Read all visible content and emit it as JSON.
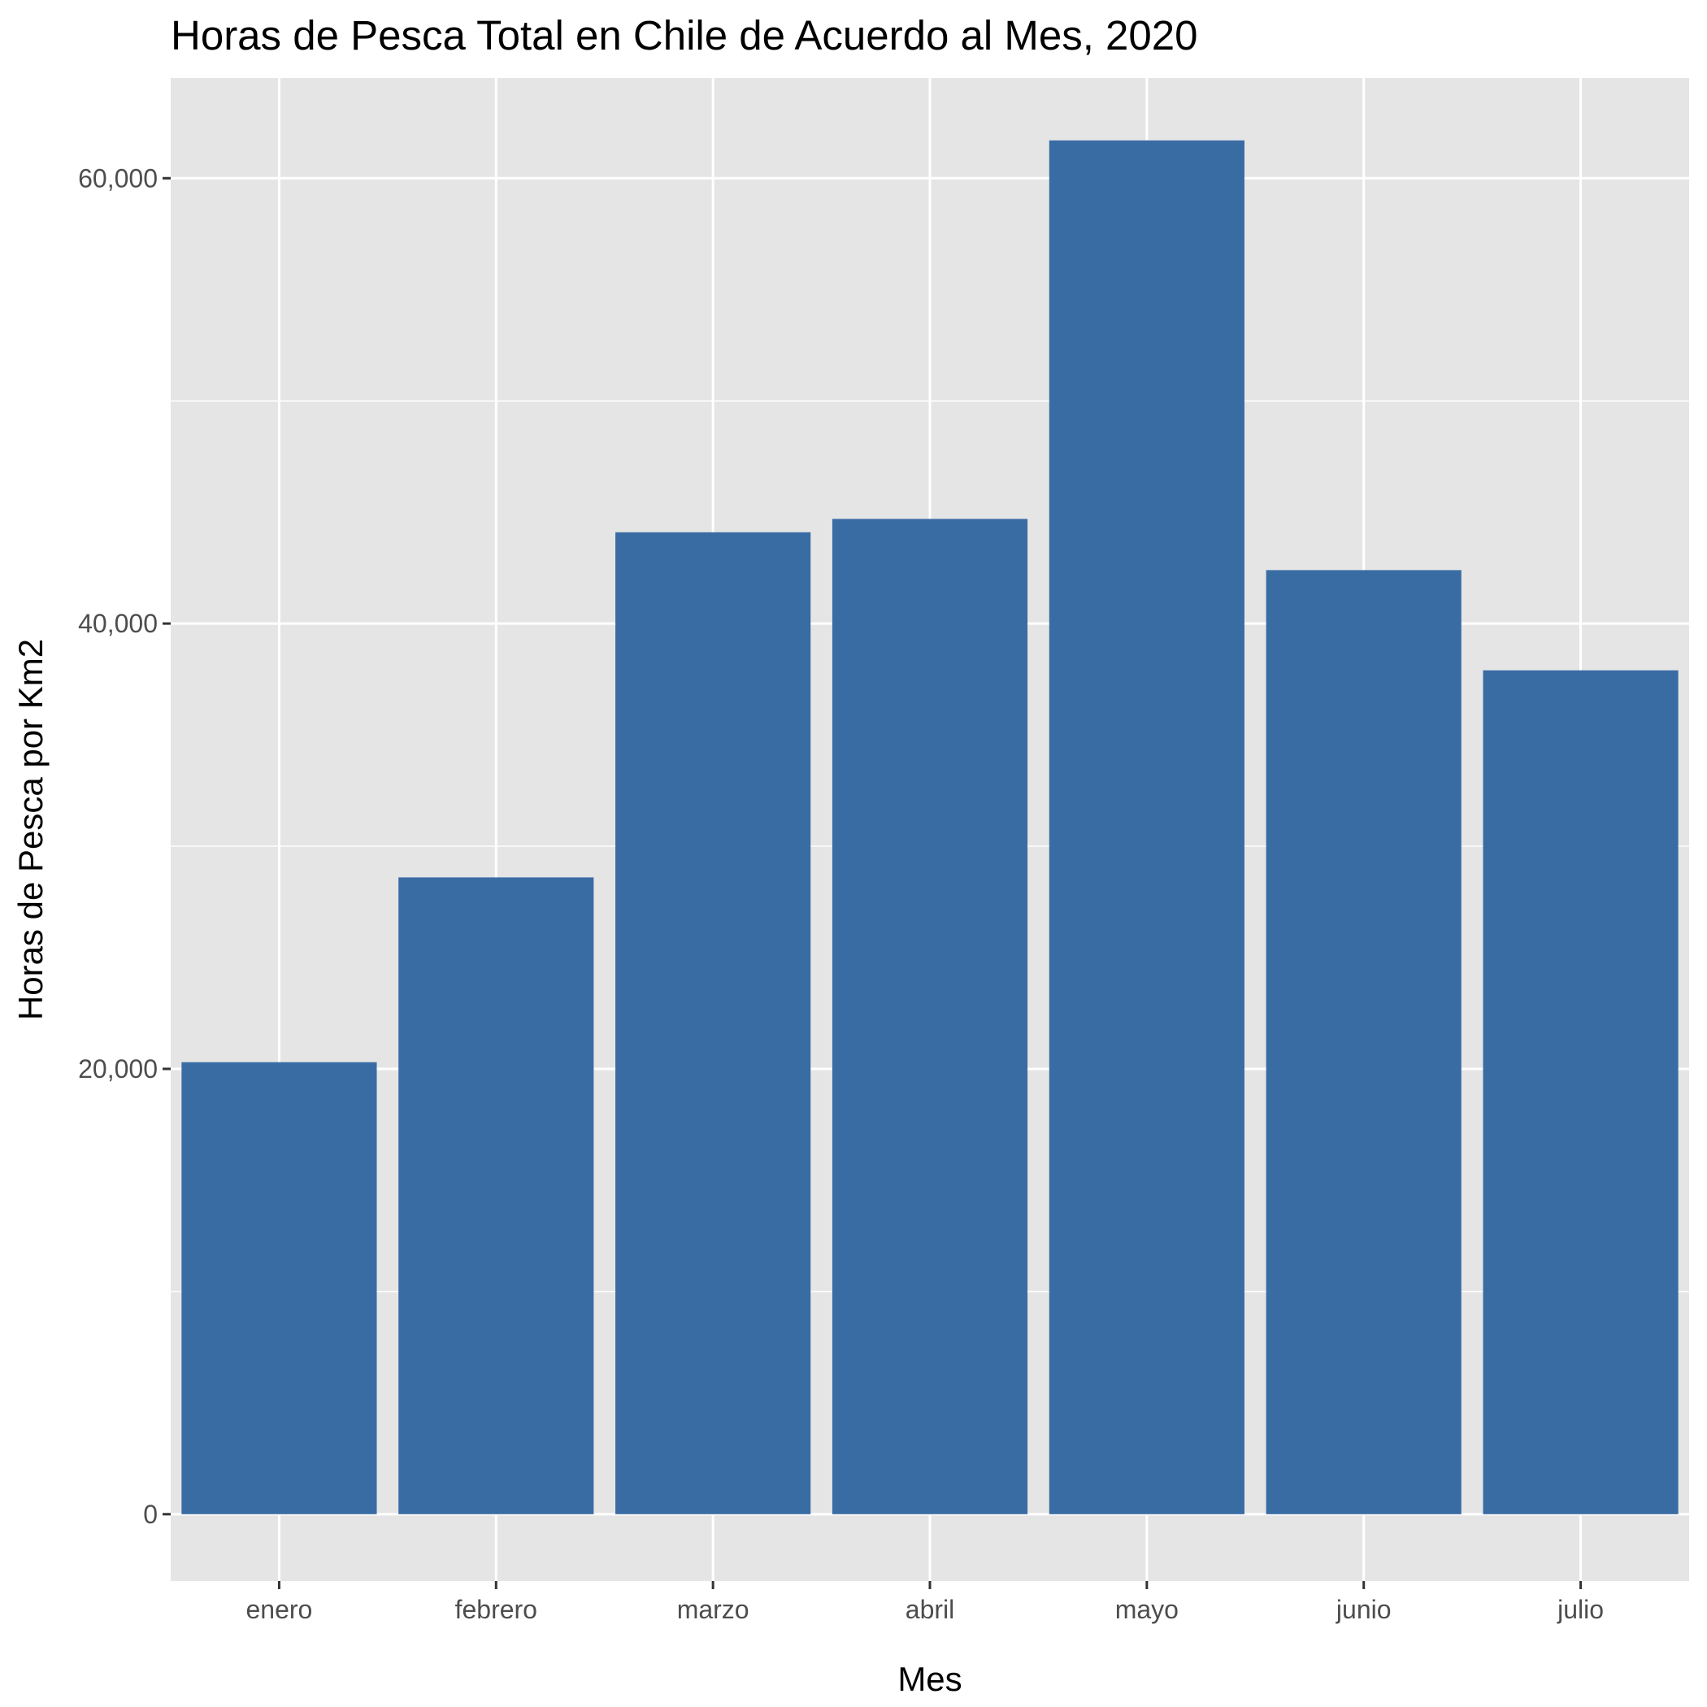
{
  "chart_data": {
    "type": "bar",
    "title": "Horas de Pesca Total en Chile de Acuerdo al Mes, 2020",
    "xlabel": "Mes",
    "ylabel": "Horas de Pesca por Km2",
    "categories": [
      "enero",
      "febrero",
      "marzo",
      "abril",
      "mayo",
      "junio",
      "julio"
    ],
    "values": [
      20300,
      28600,
      44100,
      44700,
      61700,
      42400,
      37900
    ],
    "ylim": [
      -3000,
      64500
    ],
    "yticks": [
      0,
      20000,
      40000,
      60000
    ],
    "ytick_labels": [
      "0",
      "20,000",
      "40,000",
      "60,000"
    ],
    "grid": true,
    "legend": "none",
    "colors": {
      "bar": "#3a6ca4",
      "panel": "#e5e5e5",
      "grid": "#ffffff",
      "tick": "#333333"
    }
  }
}
